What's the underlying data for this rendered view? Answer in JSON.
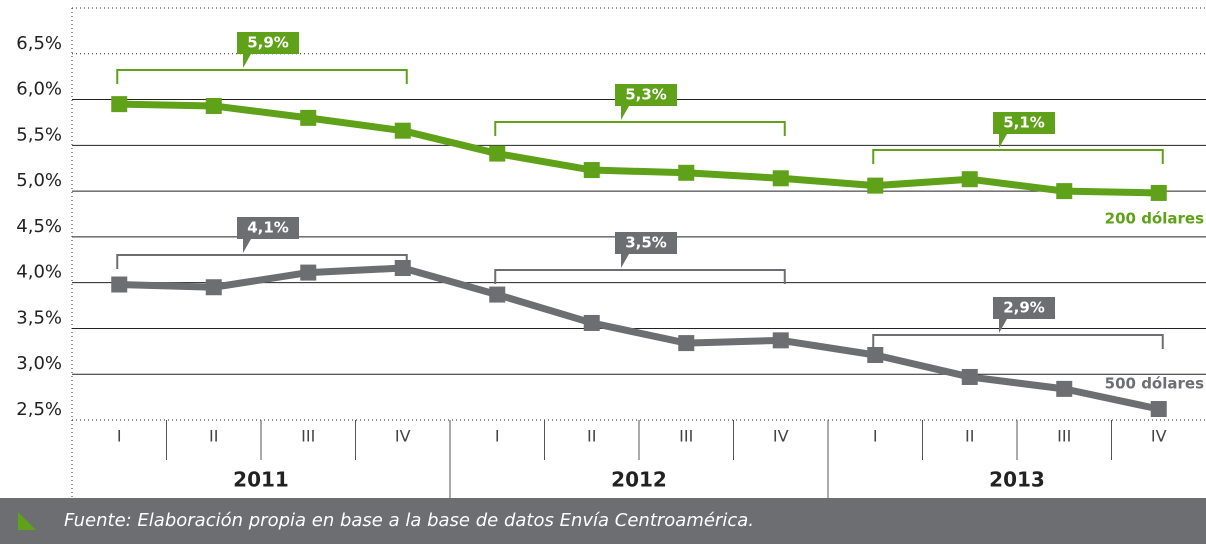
{
  "chart_data": {
    "type": "line",
    "categories": [
      "I",
      "II",
      "III",
      "IV",
      "I",
      "II",
      "III",
      "IV",
      "I",
      "II",
      "III",
      "IV"
    ],
    "years": [
      "2011",
      "2012",
      "2013"
    ],
    "series": [
      {
        "name": "200 dólares",
        "color": "#5fa118",
        "values": [
          5.95,
          5.93,
          5.8,
          5.66,
          5.41,
          5.23,
          5.2,
          5.14,
          5.06,
          5.13,
          5.0,
          4.98
        ],
        "averages": [
          {
            "value": 5.9,
            "label": "5,9%"
          },
          {
            "value": 5.3,
            "label": "5,3%"
          },
          {
            "value": 5.1,
            "label": "5,1%"
          }
        ]
      },
      {
        "name": "500 dólares",
        "color": "#6d6e71",
        "values": [
          3.98,
          3.95,
          4.11,
          4.16,
          3.87,
          3.56,
          3.34,
          3.37,
          3.21,
          2.97,
          2.84,
          2.62
        ],
        "averages": [
          {
            "value": 4.1,
            "label": "4,1%"
          },
          {
            "value": 3.5,
            "label": "3,5%"
          },
          {
            "value": 2.9,
            "label": "2,9%"
          }
        ]
      }
    ],
    "ylim": [
      2.5,
      7.0
    ],
    "yticks": [
      {
        "value": 2.5,
        "label": "2,5%"
      },
      {
        "value": 3.0,
        "label": "3,0%"
      },
      {
        "value": 3.5,
        "label": "3,5%"
      },
      {
        "value": 4.0,
        "label": "4,0%"
      },
      {
        "value": 4.5,
        "label": "4,5%"
      },
      {
        "value": 5.0,
        "label": "5,0%"
      },
      {
        "value": 5.5,
        "label": "5,5%"
      },
      {
        "value": 6.0,
        "label": "6,0%"
      },
      {
        "value": 6.5,
        "label": "6,5%"
      }
    ],
    "grid": true,
    "source": "Fuente: Elaboración propia en base a la base de datos Envía Centroamérica."
  }
}
